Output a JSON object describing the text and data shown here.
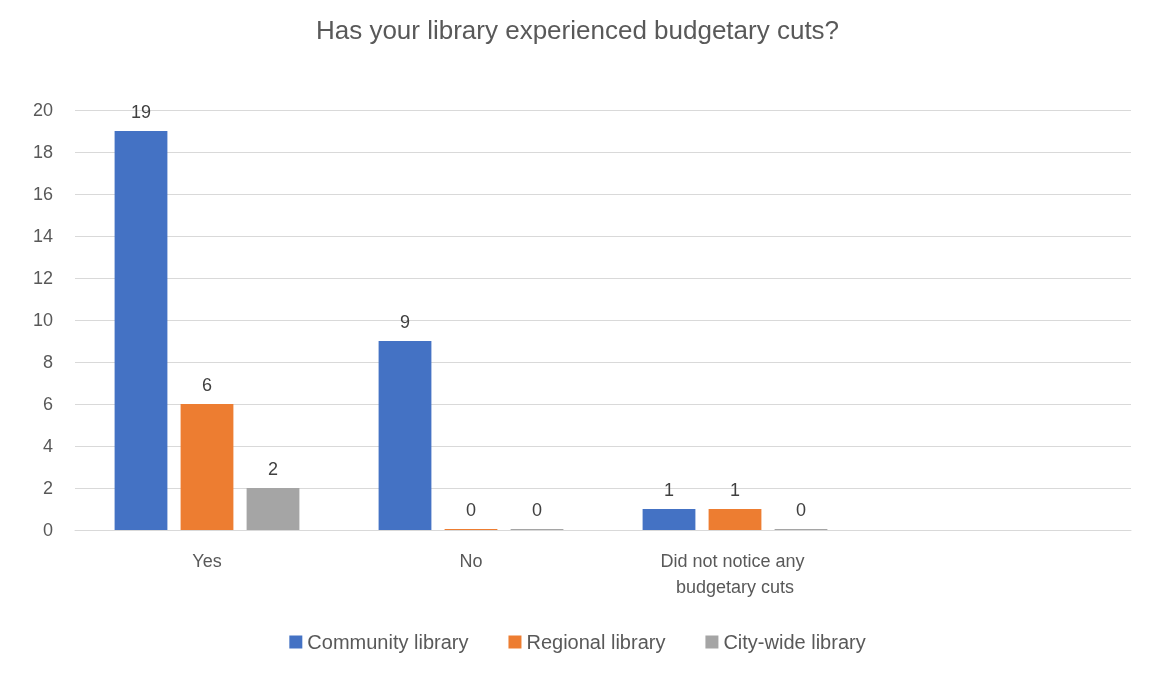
{
  "chart_data": {
    "type": "bar",
    "title": "Has your library experienced budgetary cuts?",
    "categories": [
      "Yes",
      "No",
      "Did not notice any budgetary cuts",
      null
    ],
    "series": [
      {
        "name": "Community library",
        "color": "#4472c4",
        "values": [
          19,
          9,
          1,
          null
        ]
      },
      {
        "name": "Regional library",
        "color": "#ed7d31",
        "values": [
          6,
          0,
          1,
          null
        ]
      },
      {
        "name": "City-wide library",
        "color": "#a5a5a5",
        "values": [
          2,
          0,
          0,
          null
        ]
      }
    ],
    "ylim": [
      0,
      20
    ],
    "yticks": [
      0,
      2,
      4,
      6,
      8,
      10,
      12,
      14,
      16,
      18,
      20
    ],
    "grid": "y",
    "legend": "bottom",
    "data_labels": true
  }
}
